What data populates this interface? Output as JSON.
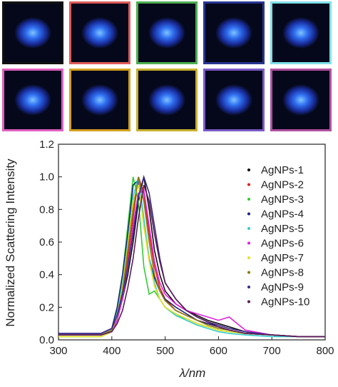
{
  "chart_data": {
    "type": "line",
    "y_label": "Normalized Scattering Intensity",
    "x_label": "λ/nm",
    "x": [
      300,
      350,
      380,
      400,
      410,
      420,
      430,
      440,
      450,
      460,
      470,
      480,
      490,
      500,
      520,
      540,
      560,
      580,
      600,
      620,
      650,
      700,
      750,
      800
    ],
    "xlim": [
      300,
      800
    ],
    "xticks": [
      300,
      400,
      500,
      600,
      700,
      800
    ],
    "ylim": [
      0,
      1.2
    ],
    "yticks": [
      {
        "value": 0,
        "label": "0.0"
      },
      0.2,
      0.4,
      0.6,
      0.8,
      {
        "value": 1,
        "label": "1.0"
      },
      1.2
    ],
    "series": [
      {
        "name": "AgNPs-1",
        "color": "#111111",
        "values": [
          0.03,
          0.03,
          0.03,
          0.06,
          0.15,
          0.25,
          0.4,
          0.6,
          0.85,
          1.0,
          0.8,
          0.55,
          0.4,
          0.3,
          0.22,
          0.18,
          0.15,
          0.12,
          0.1,
          0.08,
          0.05,
          0.03,
          0.02,
          0.02
        ]
      },
      {
        "name": "AgNPs-2",
        "color": "#e02020",
        "values": [
          0.03,
          0.03,
          0.03,
          0.05,
          0.15,
          0.3,
          0.5,
          0.75,
          1.0,
          0.9,
          0.65,
          0.45,
          0.32,
          0.25,
          0.18,
          0.15,
          0.12,
          0.1,
          0.08,
          0.06,
          0.04,
          0.03,
          0.02,
          0.02
        ]
      },
      {
        "name": "AgNPs-3",
        "color": "#33cc33",
        "values": [
          0.02,
          0.02,
          0.02,
          0.05,
          0.18,
          0.4,
          0.7,
          1.0,
          0.85,
          0.45,
          0.28,
          0.3,
          0.25,
          0.2,
          0.15,
          0.13,
          0.1,
          0.08,
          0.06,
          0.05,
          0.04,
          0.03,
          0.02,
          0.02
        ]
      },
      {
        "name": "AgNPs-4",
        "color": "#1a237e",
        "values": [
          0.04,
          0.04,
          0.04,
          0.07,
          0.2,
          0.4,
          0.65,
          0.95,
          0.98,
          0.7,
          0.5,
          0.38,
          0.3,
          0.25,
          0.2,
          0.16,
          0.12,
          0.1,
          0.08,
          0.06,
          0.04,
          0.03,
          0.02,
          0.02
        ]
      },
      {
        "name": "AgNPs-5",
        "color": "#33cccc",
        "values": [
          0.03,
          0.03,
          0.03,
          0.06,
          0.16,
          0.35,
          0.6,
          0.88,
          1.0,
          0.75,
          0.5,
          0.35,
          0.25,
          0.2,
          0.15,
          0.12,
          0.09,
          0.07,
          0.05,
          0.04,
          0.03,
          0.02,
          0.02,
          0.02
        ]
      },
      {
        "name": "AgNPs-6",
        "color": "#e020e0",
        "values": [
          0.03,
          0.03,
          0.03,
          0.05,
          0.12,
          0.25,
          0.45,
          0.7,
          0.9,
          0.92,
          0.7,
          0.48,
          0.35,
          0.28,
          0.22,
          0.18,
          0.16,
          0.14,
          0.12,
          0.14,
          0.06,
          0.03,
          0.02,
          0.02
        ]
      },
      {
        "name": "AgNPs-7",
        "color": "#e8e020",
        "values": [
          0.02,
          0.02,
          0.02,
          0.05,
          0.15,
          0.32,
          0.58,
          0.85,
          0.95,
          0.7,
          0.48,
          0.33,
          0.25,
          0.2,
          0.16,
          0.13,
          0.1,
          0.08,
          0.06,
          0.05,
          0.04,
          0.03,
          0.02,
          0.02
        ]
      },
      {
        "name": "AgNPs-8",
        "color": "#8a7a10",
        "values": [
          0.03,
          0.03,
          0.03,
          0.06,
          0.15,
          0.3,
          0.55,
          0.8,
          1.0,
          0.85,
          0.6,
          0.4,
          0.3,
          0.24,
          0.18,
          0.15,
          0.12,
          0.09,
          0.07,
          0.06,
          0.04,
          0.03,
          0.02,
          0.02
        ]
      },
      {
        "name": "AgNPs-9",
        "color": "#3a2a8a",
        "values": [
          0.04,
          0.04,
          0.04,
          0.07,
          0.15,
          0.28,
          0.45,
          0.65,
          0.88,
          1.0,
          0.9,
          0.7,
          0.5,
          0.35,
          0.25,
          0.18,
          0.14,
          0.11,
          0.09,
          0.07,
          0.05,
          0.03,
          0.02,
          0.02
        ]
      },
      {
        "name": "AgNPs-10",
        "color": "#5a1a5a",
        "values": [
          0.03,
          0.03,
          0.03,
          0.05,
          0.1,
          0.18,
          0.32,
          0.5,
          0.75,
          0.95,
          0.85,
          0.65,
          0.48,
          0.35,
          0.25,
          0.18,
          0.14,
          0.11,
          0.08,
          0.06,
          0.04,
          0.03,
          0.02,
          0.02
        ]
      }
    ]
  }
}
